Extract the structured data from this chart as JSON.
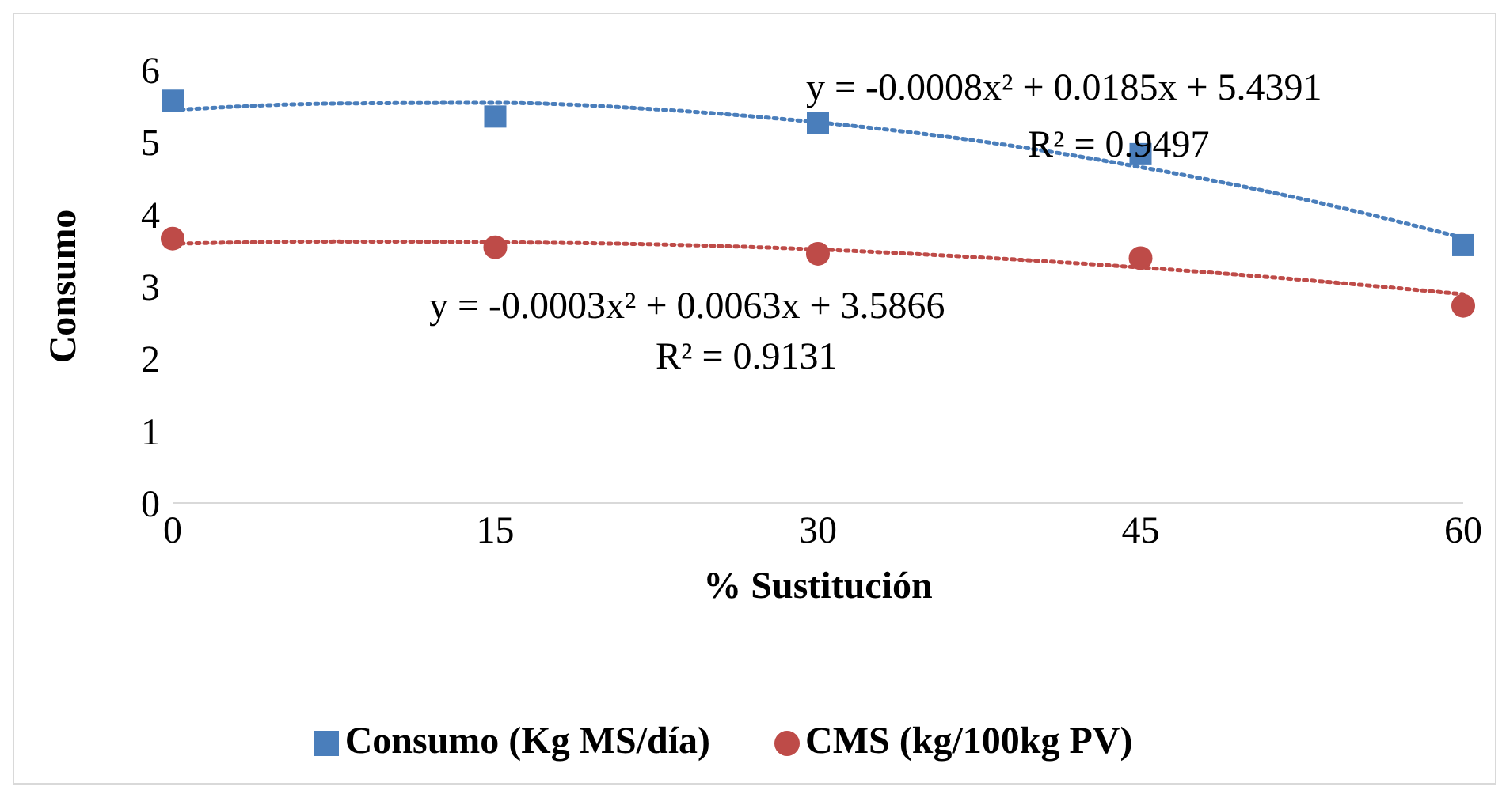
{
  "chart_data": {
    "type": "scatter",
    "xlabel": "% Sustitución",
    "ylabel": "Consumo",
    "x": [
      0,
      15,
      30,
      45,
      60
    ],
    "xlim": [
      0,
      60
    ],
    "xticks": [
      0,
      15,
      30,
      45,
      60
    ],
    "ylim": [
      0,
      6
    ],
    "yticks": [
      0,
      1,
      2,
      3,
      4,
      5,
      6
    ],
    "grid": false,
    "legend": "bottom",
    "series": [
      {
        "name": "Consumo (Kg MS/día)",
        "color": "#4a7ebb",
        "marker": "square",
        "values": [
          5.57,
          5.35,
          5.26,
          4.83,
          3.57
        ]
      },
      {
        "name": "CMS (kg/100kg PV)",
        "color": "#be4b48",
        "marker": "circle",
        "values": [
          3.66,
          3.54,
          3.45,
          3.39,
          2.73
        ]
      },
      {
        "color": "#4a7ebb",
        "type": "line",
        "marker": "none",
        "line_style": "dotted",
        "x": [
          0,
          7.5,
          15,
          22.5,
          30,
          37.5,
          45,
          52.5,
          60
        ],
        "values": [
          5.44,
          5.53,
          5.54,
          5.45,
          5.27,
          5.01,
          4.65,
          4.21,
          3.67
        ]
      },
      {
        "color": "#be4b48",
        "type": "line",
        "marker": "none",
        "line_style": "dotted",
        "x": [
          0,
          7.5,
          15,
          22.5,
          30,
          37.5,
          45,
          52.5,
          60
        ],
        "values": [
          3.59,
          3.62,
          3.61,
          3.58,
          3.51,
          3.4,
          3.26,
          3.09,
          2.89
        ]
      }
    ],
    "annotations": [
      "y = -0.0008x² + 0.0185x + 5.4391",
      "R² = 0.9497",
      "y = -0.0003x² + 0.0063x + 3.5866",
      "R² = 0.9131"
    ]
  }
}
